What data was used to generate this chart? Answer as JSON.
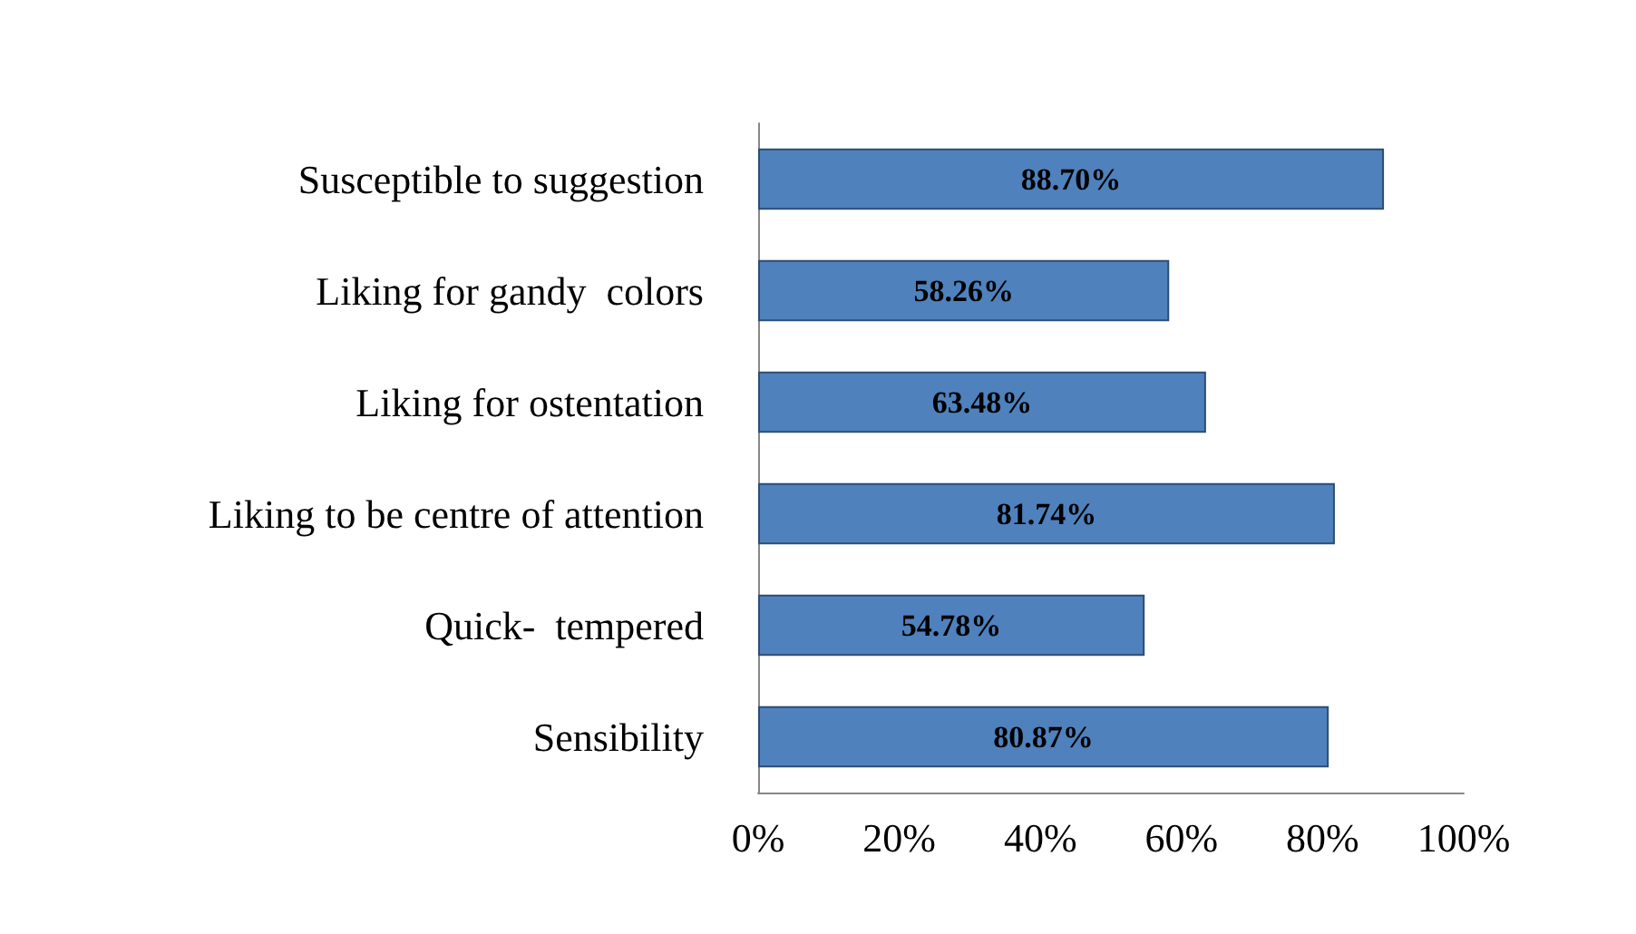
{
  "chart_data": {
    "type": "bar",
    "orientation": "horizontal",
    "categories": [
      "Susceptible to suggestion",
      "Liking for gandy  colors",
      "Liking for ostentation",
      "Liking to be centre of attention",
      "Quick-  tempered",
      "Sensibility"
    ],
    "values": [
      88.7,
      58.26,
      63.48,
      81.74,
      54.78,
      80.87
    ],
    "value_labels": [
      "88.70%",
      "58.26%",
      "63.48%",
      "81.74%",
      "54.78%",
      "80.87%"
    ],
    "color": "#4f81bd",
    "xlim": [
      0,
      100
    ],
    "xticks": [
      {
        "value": 0,
        "label": "0%"
      },
      {
        "value": 20,
        "label": "20%"
      },
      {
        "value": 40,
        "label": "40%"
      },
      {
        "value": 60,
        "label": "60%"
      },
      {
        "value": 80,
        "label": "80%"
      },
      {
        "value": 100,
        "label": "100%"
      }
    ],
    "grid": false
  }
}
